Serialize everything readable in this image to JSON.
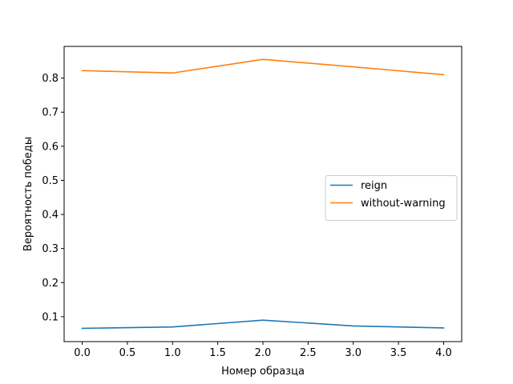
{
  "chart_data": {
    "type": "line",
    "title": "",
    "xlabel": "Номер образца",
    "ylabel": "Вероятность победы",
    "x": [
      0,
      1,
      2,
      3,
      4
    ],
    "xlim": [
      -0.2,
      4.2
    ],
    "ylim": [
      0.027,
      0.893
    ],
    "xticks": [
      0.0,
      0.5,
      1.0,
      1.5,
      2.0,
      2.5,
      3.0,
      3.5,
      4.0
    ],
    "xtick_labels": [
      "0.0",
      "0.5",
      "1.0",
      "1.5",
      "2.0",
      "2.5",
      "3.0",
      "3.5",
      "4.0"
    ],
    "yticks": [
      0.1,
      0.2,
      0.3,
      0.4,
      0.5,
      0.6,
      0.7,
      0.8
    ],
    "ytick_labels": [
      "0.1",
      "0.2",
      "0.3",
      "0.4",
      "0.5",
      "0.6",
      "0.7",
      "0.8"
    ],
    "grid": false,
    "legend_position": "center-right",
    "series": [
      {
        "name": "reign",
        "color": "#1f77b4",
        "values": [
          0.066,
          0.07,
          0.09,
          0.073,
          0.067
        ]
      },
      {
        "name": "without-warning",
        "color": "#ff7f0e",
        "values": [
          0.822,
          0.815,
          0.855,
          0.833,
          0.81
        ]
      }
    ]
  }
}
